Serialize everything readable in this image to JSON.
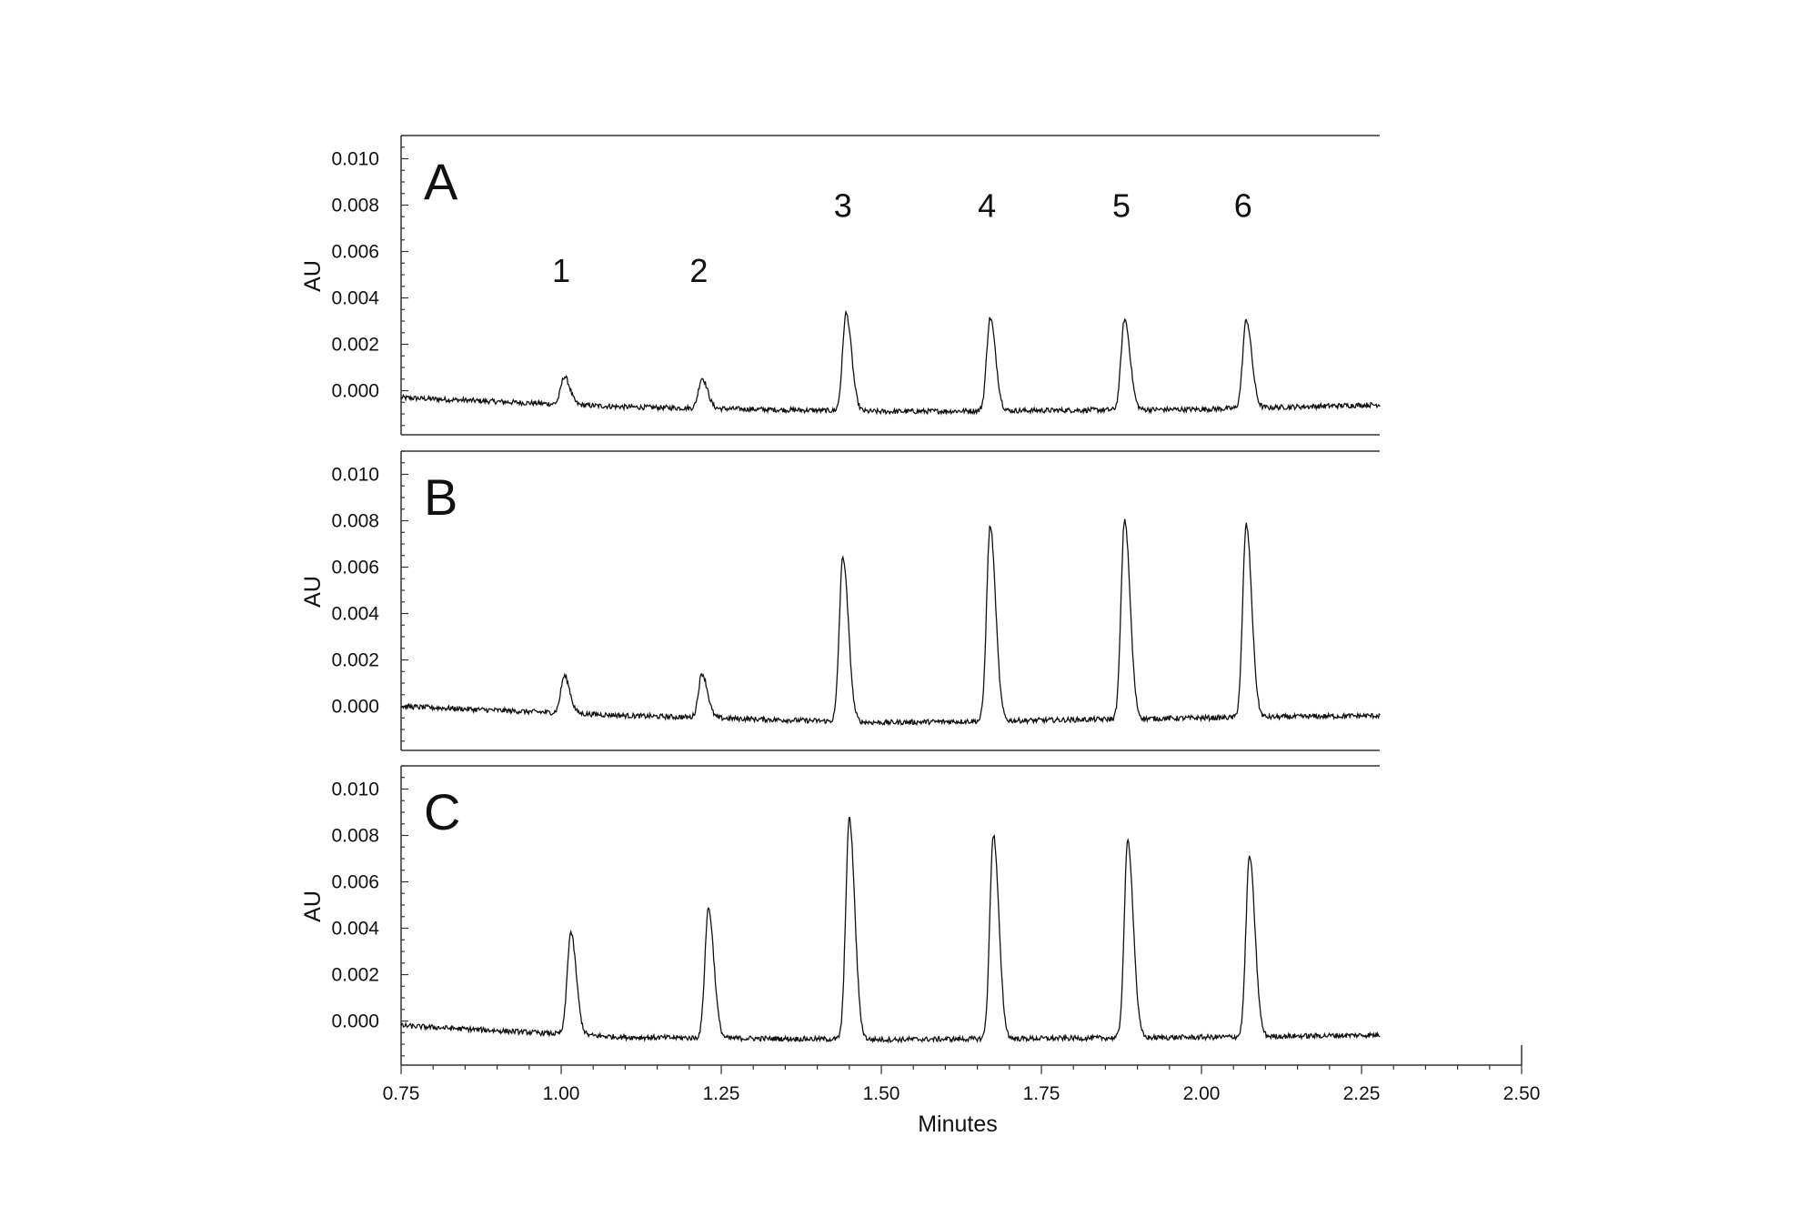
{
  "chart_data": {
    "type": "line",
    "xlabel": "Minutes",
    "ylabel": "AU",
    "xlim": [
      0.75,
      2.5
    ],
    "ylim": [
      -0.0019,
      0.011
    ],
    "xticks": [
      "0.75",
      "1.00",
      "1.25",
      "1.50",
      "1.75",
      "2.00",
      "2.25",
      "2.50"
    ],
    "yticks": [
      "0.000",
      "0.002",
      "0.004",
      "0.006",
      "0.008",
      "0.010"
    ],
    "grid": false,
    "peak_labels": [
      {
        "label": "1",
        "x": 1.0,
        "y": 0.0052
      },
      {
        "label": "2",
        "x": 1.215,
        "y": 0.0052
      },
      {
        "label": "3",
        "x": 1.44,
        "y": 0.008
      },
      {
        "label": "4",
        "x": 1.665,
        "y": 0.008
      },
      {
        "label": "5",
        "x": 1.875,
        "y": 0.008
      },
      {
        "label": "6",
        "x": 2.065,
        "y": 0.008
      }
    ],
    "panels": [
      {
        "label": "A",
        "baseline": [
          [
            0.75,
            -0.0003
          ],
          [
            1.1,
            -0.0007
          ],
          [
            1.5,
            -0.0009
          ],
          [
            2.0,
            -0.0008
          ],
          [
            2.28,
            -0.0006
          ]
        ],
        "peaks": [
          {
            "x": 1.005,
            "height": 0.0012
          },
          {
            "x": 1.22,
            "height": 0.0013
          },
          {
            "x": 1.445,
            "height": 0.0042
          },
          {
            "x": 1.67,
            "height": 0.004
          },
          {
            "x": 1.88,
            "height": 0.0039
          },
          {
            "x": 2.07,
            "height": 0.0038
          }
        ]
      },
      {
        "label": "B",
        "baseline": [
          [
            0.75,
            0.0
          ],
          [
            1.1,
            -0.0004
          ],
          [
            1.5,
            -0.0007
          ],
          [
            2.0,
            -0.0005
          ],
          [
            2.28,
            -0.0004
          ]
        ],
        "peaks": [
          {
            "x": 1.005,
            "height": 0.0016
          },
          {
            "x": 1.22,
            "height": 0.0019
          },
          {
            "x": 1.44,
            "height": 0.0071
          },
          {
            "x": 1.67,
            "height": 0.0084
          },
          {
            "x": 1.88,
            "height": 0.0086
          },
          {
            "x": 2.07,
            "height": 0.0083
          }
        ]
      },
      {
        "label": "C",
        "baseline": [
          [
            0.75,
            -0.0002
          ],
          [
            1.1,
            -0.0007
          ],
          [
            1.5,
            -0.0008
          ],
          [
            2.0,
            -0.0007
          ],
          [
            2.28,
            -0.0006
          ]
        ],
        "peaks": [
          {
            "x": 1.015,
            "height": 0.0044
          },
          {
            "x": 1.23,
            "height": 0.0056
          },
          {
            "x": 1.45,
            "height": 0.0095
          },
          {
            "x": 1.675,
            "height": 0.0088
          },
          {
            "x": 1.885,
            "height": 0.0085
          },
          {
            "x": 2.075,
            "height": 0.0078
          }
        ]
      }
    ]
  }
}
